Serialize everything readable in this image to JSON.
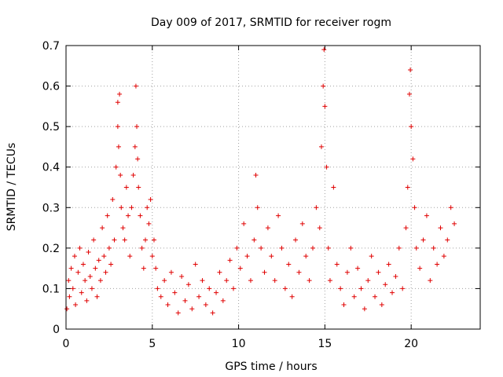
{
  "chart_data": {
    "type": "scatter",
    "title": "Day 009 of 2017, SRMTID for receiver rogm",
    "xlabel": "GPS time / hours",
    "ylabel": "SRMTID / TECUs",
    "xlim": [
      0,
      24
    ],
    "ylim": [
      0,
      0.7
    ],
    "x_ticks": [
      0,
      5,
      10,
      15,
      20
    ],
    "y_ticks": [
      0,
      0.1,
      0.2,
      0.3,
      0.4,
      0.5,
      0.6,
      0.7
    ],
    "x_tick_labels": [
      "0",
      "5",
      "10",
      "15",
      "20"
    ],
    "y_tick_labels": [
      "0",
      "0.1",
      "0.2",
      "0.3",
      "0.4",
      "0.5",
      "0.6",
      "0.7"
    ],
    "grid": true,
    "marker": "plus",
    "color": "#e00000",
    "series": [
      {
        "name": "SRMTID",
        "x": [
          0.05,
          0.15,
          0.2,
          0.3,
          0.4,
          0.5,
          0.55,
          0.7,
          0.8,
          0.9,
          1.0,
          1.1,
          1.2,
          1.3,
          1.4,
          1.5,
          1.6,
          1.7,
          1.8,
          1.9,
          2.0,
          2.1,
          2.2,
          2.3,
          2.4,
          2.5,
          2.6,
          2.7,
          2.8,
          2.9,
          3.0,
          3.0,
          3.05,
          3.1,
          3.15,
          3.2,
          3.3,
          3.4,
          3.5,
          3.6,
          3.7,
          3.8,
          3.9,
          4.0,
          4.05,
          4.1,
          4.15,
          4.2,
          4.3,
          4.4,
          4.5,
          4.6,
          4.7,
          4.8,
          4.9,
          5.0,
          5.1,
          5.2,
          5.3,
          5.5,
          5.7,
          5.9,
          6.1,
          6.3,
          6.5,
          6.7,
          6.9,
          7.1,
          7.3,
          7.5,
          7.7,
          7.9,
          8.1,
          8.3,
          8.5,
          8.7,
          8.9,
          9.1,
          9.3,
          9.5,
          9.7,
          9.9,
          10.1,
          10.3,
          10.5,
          10.7,
          10.9,
          11.0,
          11.1,
          11.3,
          11.5,
          11.7,
          11.9,
          12.1,
          12.3,
          12.5,
          12.7,
          12.9,
          13.1,
          13.3,
          13.5,
          13.7,
          13.9,
          14.1,
          14.3,
          14.5,
          14.7,
          14.8,
          14.9,
          14.95,
          15.0,
          15.1,
          15.2,
          15.3,
          15.5,
          15.7,
          15.9,
          16.1,
          16.3,
          16.5,
          16.7,
          16.9,
          17.1,
          17.3,
          17.5,
          17.7,
          17.9,
          18.1,
          18.3,
          18.5,
          18.7,
          18.9,
          19.1,
          19.3,
          19.5,
          19.7,
          19.8,
          19.9,
          19.95,
          20.0,
          20.1,
          20.2,
          20.3,
          20.5,
          20.7,
          20.9,
          21.1,
          21.3,
          21.5,
          21.7,
          21.9,
          22.1,
          22.3,
          22.5
        ],
        "y": [
          0.05,
          0.12,
          0.08,
          0.15,
          0.1,
          0.18,
          0.06,
          0.14,
          0.2,
          0.09,
          0.16,
          0.12,
          0.07,
          0.19,
          0.13,
          0.1,
          0.22,
          0.15,
          0.08,
          0.17,
          0.12,
          0.25,
          0.18,
          0.14,
          0.28,
          0.2,
          0.16,
          0.32,
          0.22,
          0.4,
          0.56,
          0.5,
          0.45,
          0.58,
          0.38,
          0.3,
          0.25,
          0.22,
          0.35,
          0.28,
          0.18,
          0.3,
          0.38,
          0.45,
          0.6,
          0.5,
          0.42,
          0.35,
          0.28,
          0.2,
          0.15,
          0.22,
          0.3,
          0.26,
          0.32,
          0.18,
          0.22,
          0.15,
          0.1,
          0.08,
          0.12,
          0.06,
          0.14,
          0.09,
          0.04,
          0.13,
          0.07,
          0.11,
          0.05,
          0.16,
          0.08,
          0.12,
          0.06,
          0.1,
          0.04,
          0.09,
          0.14,
          0.07,
          0.12,
          0.17,
          0.1,
          0.2,
          0.15,
          0.26,
          0.18,
          0.12,
          0.22,
          0.38,
          0.3,
          0.2,
          0.14,
          0.25,
          0.18,
          0.12,
          0.28,
          0.2,
          0.1,
          0.16,
          0.08,
          0.22,
          0.14,
          0.26,
          0.18,
          0.12,
          0.2,
          0.3,
          0.25,
          0.45,
          0.6,
          0.69,
          0.55,
          0.4,
          0.2,
          0.12,
          0.35,
          0.16,
          0.1,
          0.06,
          0.14,
          0.2,
          0.08,
          0.15,
          0.1,
          0.05,
          0.12,
          0.18,
          0.08,
          0.14,
          0.06,
          0.11,
          0.16,
          0.09,
          0.13,
          0.2,
          0.1,
          0.25,
          0.35,
          0.58,
          0.64,
          0.5,
          0.42,
          0.3,
          0.2,
          0.15,
          0.22,
          0.28,
          0.12,
          0.2,
          0.16,
          0.25,
          0.18,
          0.22,
          0.3,
          0.26
        ]
      }
    ]
  }
}
